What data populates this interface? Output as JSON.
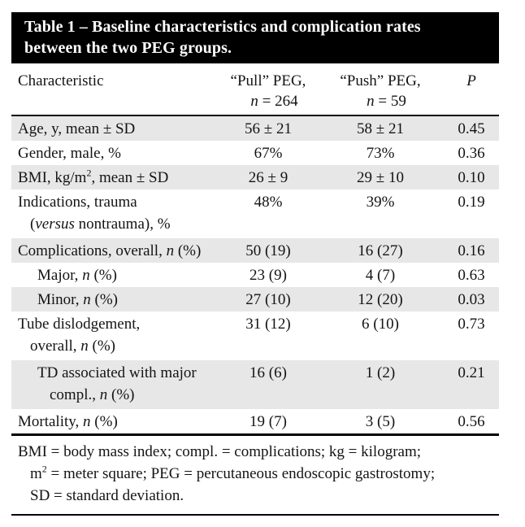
{
  "title": {
    "line1": "Table 1 – Baseline characteristics and complication rates",
    "line2": "between the two PEG groups."
  },
  "colors": {
    "bar_bg": "#000000",
    "bar_text": "#ffffff",
    "row_shade": "#e7e7e7",
    "rule": "#000000",
    "body_text": "#141414",
    "page_bg": "#ffffff"
  },
  "columns": [
    {
      "name": "characteristic",
      "lines": [
        [
          {
            "t": "Characteristic"
          }
        ]
      ]
    },
    {
      "name": "pull",
      "lines": [
        [
          {
            "t": "“Pull” PEG,"
          }
        ],
        [
          {
            "i": "n"
          },
          {
            "t": " = 264"
          }
        ]
      ]
    },
    {
      "name": "push",
      "lines": [
        [
          {
            "t": "“Push” PEG,"
          }
        ],
        [
          {
            "i": "n"
          },
          {
            "t": " = 59"
          }
        ]
      ]
    },
    {
      "name": "p",
      "lines": [
        [
          {
            "i": "P"
          }
        ]
      ]
    }
  ],
  "rows": [
    {
      "shaded": true,
      "indent": 0,
      "label": [
        [
          {
            "t": "Age, y, mean ± SD"
          }
        ]
      ],
      "pull": "56 ± 21",
      "push": "58 ± 21",
      "p": "0.45"
    },
    {
      "shaded": false,
      "indent": 0,
      "label": [
        [
          {
            "t": "Gender, male, %"
          }
        ]
      ],
      "pull": "67%",
      "push": "73%",
      "p": "0.36"
    },
    {
      "shaded": true,
      "indent": 0,
      "label": [
        [
          {
            "t": "BMI, kg/m"
          },
          {
            "s": "2"
          },
          {
            "t": ", mean ± SD"
          }
        ]
      ],
      "pull": "26 ± 9",
      "push": "29 ± 10",
      "p": "0.10"
    },
    {
      "shaded": false,
      "indent": 0,
      "label": [
        [
          {
            "t": "Indications, trauma"
          }
        ],
        [
          {
            "t": "("
          },
          {
            "i": "versus"
          },
          {
            "t": " nontrauma), %"
          }
        ]
      ],
      "pull": "48%",
      "push": "39%",
      "p": "0.19"
    },
    {
      "shaded": true,
      "indent": 0,
      "label": [
        [
          {
            "t": "Complications, overall, "
          },
          {
            "i": "n"
          },
          {
            "t": " (%)"
          }
        ]
      ],
      "pull": "50 (19)",
      "push": "16 (27)",
      "p": "0.16"
    },
    {
      "shaded": false,
      "indent": 1,
      "label": [
        [
          {
            "t": "Major, "
          },
          {
            "i": "n"
          },
          {
            "t": " (%)"
          }
        ]
      ],
      "pull": "23 (9)",
      "push": "4 (7)",
      "p": "0.63"
    },
    {
      "shaded": true,
      "indent": 1,
      "label": [
        [
          {
            "t": "Minor, "
          },
          {
            "i": "n"
          },
          {
            "t": " (%)"
          }
        ]
      ],
      "pull": "27 (10)",
      "push": "12 (20)",
      "p": "0.03"
    },
    {
      "shaded": false,
      "indent": 0,
      "label": [
        [
          {
            "t": "Tube dislodgement,"
          }
        ],
        [
          {
            "t": "overall, "
          },
          {
            "i": "n"
          },
          {
            "t": " (%)"
          }
        ]
      ],
      "pull": "31 (12)",
      "push": "6 (10)",
      "p": "0.73"
    },
    {
      "shaded": true,
      "indent": 1,
      "label": [
        [
          {
            "t": "TD associated with major"
          }
        ],
        [
          {
            "t": "compl., "
          },
          {
            "i": "n"
          },
          {
            "t": " (%)"
          }
        ]
      ],
      "pull": "16 (6)",
      "push": "1 (2)",
      "p": "0.21"
    },
    {
      "shaded": false,
      "indent": 0,
      "label": [
        [
          {
            "t": "Mortality, "
          },
          {
            "i": "n"
          },
          {
            "t": " (%)"
          }
        ]
      ],
      "pull": "19 (7)",
      "push": "3 (5)",
      "p": "0.56"
    }
  ],
  "footnote": {
    "lines": [
      [
        {
          "t": "BMI = body mass index; compl. = complications; kg = kilogram;"
        }
      ],
      [
        {
          "t": "m"
        },
        {
          "s": "2"
        },
        {
          "t": " = meter square; PEG = percutaneous endoscopic gastrostomy;"
        }
      ],
      [
        {
          "t": "SD = standard deviation."
        }
      ]
    ]
  }
}
